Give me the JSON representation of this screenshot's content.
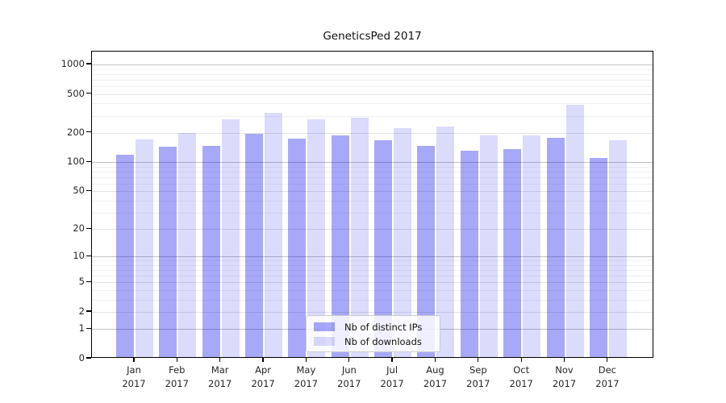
{
  "title": "GeneticsPed 2017",
  "chart_data": {
    "type": "bar",
    "title": "GeneticsPed 2017",
    "categories": [
      "Jan 2017",
      "Feb 2017",
      "Mar 2017",
      "Apr 2017",
      "May 2017",
      "Jun 2017",
      "Jul 2017",
      "Aug 2017",
      "Sep 2017",
      "Oct 2017",
      "Nov 2017",
      "Dec 2017"
    ],
    "series": [
      {
        "name": "Nb of distinct IPs",
        "color_key": "bar_ips",
        "values": [
          114,
          139,
          142,
          189,
          167,
          183,
          161,
          142,
          126,
          130,
          170,
          106
        ]
      },
      {
        "name": "Nb of downloads",
        "color_key": "bar_downloads",
        "values": [
          164,
          193,
          264,
          310,
          263,
          273,
          217,
          224,
          180,
          181,
          375,
          162
        ]
      }
    ],
    "xlabel": "",
    "ylabel": "",
    "yscale": "log1p",
    "ylim": [
      0,
      1350
    ],
    "yticks": [
      0,
      1,
      2,
      5,
      10,
      20,
      50,
      100,
      200,
      500,
      1000
    ],
    "grid": "on",
    "legend_position": "inside-bottom-center"
  },
  "colors": {
    "bar_ips": "rgba(0,0,235,0.34)",
    "bar_downloads": "rgba(0,0,235,0.14)",
    "grid_power10": "#c3c3c3",
    "grid_labeled": "#e3e3e3",
    "grid_minor": "#f0f0f0",
    "axis": "#000000",
    "text": "#262626"
  }
}
